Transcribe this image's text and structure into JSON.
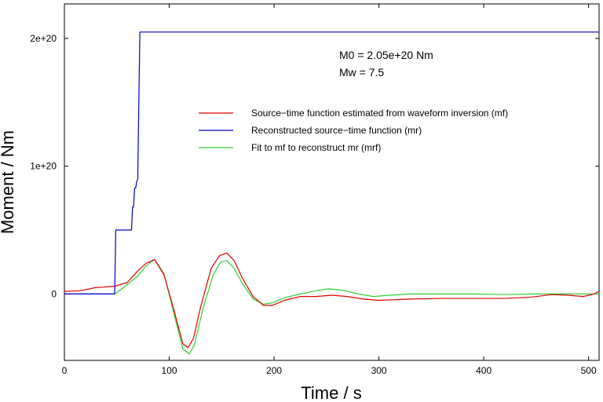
{
  "chart_data": {
    "type": "line",
    "xlabel": "Time / s",
    "ylabel": "Moment / Nm",
    "xlim": [
      0,
      510
    ],
    "ylim": [
      -5.2e+19,
      2.27e+20
    ],
    "xticks": [
      0,
      100,
      200,
      300,
      400,
      500
    ],
    "xtick_labels": [
      "0",
      "100",
      "200",
      "300",
      "400",
      "500"
    ],
    "yticks": [
      0,
      1e+20,
      2e+20
    ],
    "ytick_labels": [
      "0",
      "1e+20",
      "2e+20"
    ],
    "grid": false,
    "legend_position": "upper-right",
    "annotations": [
      "M0 = 2.05e+20 Nm",
      "Mw = 7.5"
    ],
    "series": [
      {
        "name": "Source−time function estimated from waveform inversion (mf)",
        "color": "#e00000",
        "x": [
          0,
          15,
          30,
          48,
          60,
          70,
          78,
          86,
          95,
          105,
          113,
          118,
          123,
          130,
          140,
          148,
          155,
          162,
          170,
          180,
          190,
          198,
          210,
          225,
          240,
          255,
          270,
          285,
          300,
          330,
          360,
          390,
          420,
          445,
          465,
          480,
          495,
          505,
          510
        ],
        "y": [
          2e+18,
          2.5e+18,
          5e+18,
          6e+18,
          9e+18,
          1.8e+19,
          2.4e+19,
          2.7e+19,
          1.5e+19,
          -1.4e+19,
          -3.9e+19,
          -4.2e+19,
          -3.5e+19,
          -1e+19,
          2e+19,
          3e+19,
          3.2e+19,
          2.6e+19,
          1.2e+19,
          -2e+18,
          -9e+18,
          -9e+18,
          -5e+18,
          -2e+18,
          -2e+18,
          -1e+18,
          -2e+18,
          -4e+18,
          -5e+18,
          -4e+18,
          -3.5e+18,
          -3.5e+18,
          -3.5e+18,
          -2.5e+18,
          -5e+17,
          -1e+18,
          -2e+18,
          0,
          2e+18
        ]
      },
      {
        "name": "Reconstructed source−time function (mr)",
        "color": "#0000cc",
        "x": [
          0,
          48,
          49,
          50,
          63,
          64,
          65,
          66,
          67,
          67.5,
          68,
          69,
          70,
          71,
          72,
          510
        ],
        "y": [
          0,
          0,
          5e+19,
          5e+19,
          5e+19,
          5e+19,
          6.8e+19,
          6.8e+19,
          8.3e+19,
          8.3e+19,
          8.3e+19,
          8.8e+19,
          9e+19,
          1.5e+20,
          2.05e+20,
          2.05e+20
        ]
      },
      {
        "name": "Fit to mf to reconstruct mr (mrf)",
        "color": "#33cc33",
        "x": [
          0,
          48,
          58,
          70,
          78,
          86,
          95,
          105,
          113,
          119,
          124,
          132,
          142,
          149,
          155,
          162,
          170,
          180,
          190,
          198,
          210,
          225,
          240,
          252,
          265,
          280,
          295,
          310,
          330,
          360,
          390,
          420,
          450,
          480,
          510
        ],
        "y": [
          0,
          0,
          6e+18,
          1.4e+19,
          2.2e+19,
          2.7e+19,
          1.6e+19,
          -1.7e+19,
          -4.3e+19,
          -4.7e+19,
          -4e+19,
          -1.2e+19,
          1.5e+19,
          2.5e+19,
          2.6e+19,
          2e+19,
          8e+18,
          -4e+18,
          -8e+18,
          -7e+18,
          -3e+18,
          0,
          2.5e+18,
          4e+18,
          3e+18,
          0,
          -2e+18,
          -1e+18,
          0,
          0,
          0,
          -5e+17,
          0,
          0,
          0
        ]
      }
    ]
  }
}
